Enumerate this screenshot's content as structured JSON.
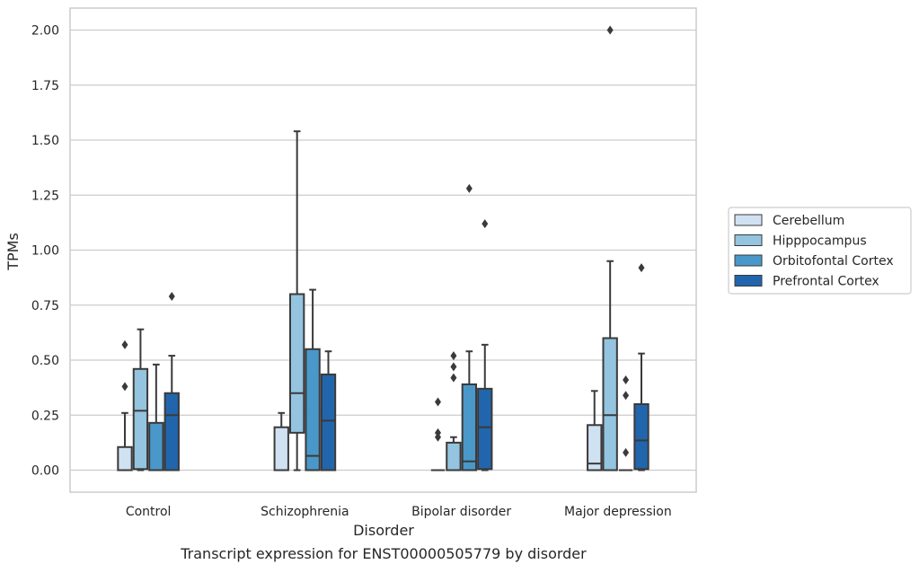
{
  "chart_data": {
    "type": "boxplot",
    "xlabel": "Disorder",
    "ylabel": "TPMs",
    "caption": "Transcript expression for ENST00000505779 by disorder",
    "ylim": [
      -0.1,
      2.1
    ],
    "yticks": [
      "0.00",
      "0.25",
      "0.50",
      "0.75",
      "1.00",
      "1.25",
      "1.50",
      "1.75",
      "2.00"
    ],
    "ytick_values": [
      0,
      0.25,
      0.5,
      0.75,
      1.0,
      1.25,
      1.5,
      1.75,
      2.0
    ],
    "grid": "horizontal",
    "legend_position": "right",
    "categories": [
      "Control",
      "Schizophrenia",
      "Bipolar disorder",
      "Major depression"
    ],
    "series": [
      {
        "name": "Cerebellum",
        "color": "#d0e1f2",
        "boxes": [
          {
            "q1": 0.0,
            "median": 0.0,
            "q3": 0.105,
            "whisker_low": 0.0,
            "whisker_high": 0.26,
            "outliers": [
              0.38,
              0.57
            ]
          },
          {
            "q1": 0.0,
            "median": 0.0,
            "q3": 0.195,
            "whisker_low": 0.0,
            "whisker_high": 0.26,
            "outliers": []
          },
          {
            "q1": 0.0,
            "median": 0.0,
            "q3": 0.0,
            "whisker_low": 0.0,
            "whisker_high": 0.0,
            "outliers": [
              0.15,
              0.17,
              0.31
            ]
          },
          {
            "q1": 0.0,
            "median": 0.03,
            "q3": 0.205,
            "whisker_low": 0.0,
            "whisker_high": 0.36,
            "outliers": []
          }
        ]
      },
      {
        "name": "Hipppocampus",
        "color": "#94c4df",
        "boxes": [
          {
            "q1": 0.005,
            "median": 0.27,
            "q3": 0.46,
            "whisker_low": 0.0,
            "whisker_high": 0.64,
            "outliers": []
          },
          {
            "q1": 0.17,
            "median": 0.35,
            "q3": 0.8,
            "whisker_low": 0.0,
            "whisker_high": 1.54,
            "outliers": []
          },
          {
            "q1": 0.0,
            "median": 0.0,
            "q3": 0.125,
            "whisker_low": 0.0,
            "whisker_high": 0.15,
            "outliers": [
              0.42,
              0.47,
              0.52
            ]
          },
          {
            "q1": 0.0,
            "median": 0.25,
            "q3": 0.6,
            "whisker_low": 0.0,
            "whisker_high": 0.95,
            "outliers": [
              2.0
            ]
          }
        ]
      },
      {
        "name": "Orbitofontal Cortex",
        "color": "#4a98c9",
        "boxes": [
          {
            "q1": 0.0,
            "median": 0.0,
            "q3": 0.215,
            "whisker_low": 0.0,
            "whisker_high": 0.48,
            "outliers": []
          },
          {
            "q1": 0.0,
            "median": 0.065,
            "q3": 0.55,
            "whisker_low": 0.0,
            "whisker_high": 0.82,
            "outliers": []
          },
          {
            "q1": 0.0,
            "median": 0.04,
            "q3": 0.39,
            "whisker_low": 0.0,
            "whisker_high": 0.54,
            "outliers": [
              1.28
            ]
          },
          {
            "q1": 0.0,
            "median": 0.0,
            "q3": 0.0,
            "whisker_low": 0.0,
            "whisker_high": 0.0,
            "outliers": [
              0.08,
              0.34,
              0.41
            ]
          }
        ]
      },
      {
        "name": "Prefrontal Cortex",
        "color": "#2166ac",
        "boxes": [
          {
            "q1": 0.0,
            "median": 0.25,
            "q3": 0.35,
            "whisker_low": 0.0,
            "whisker_high": 0.52,
            "outliers": [
              0.79
            ]
          },
          {
            "q1": 0.0,
            "median": 0.225,
            "q3": 0.435,
            "whisker_low": 0.0,
            "whisker_high": 0.54,
            "outliers": []
          },
          {
            "q1": 0.005,
            "median": 0.195,
            "q3": 0.37,
            "whisker_low": 0.0,
            "whisker_high": 0.57,
            "outliers": [
              1.12
            ]
          },
          {
            "q1": 0.005,
            "median": 0.135,
            "q3": 0.3,
            "whisker_low": 0.0,
            "whisker_high": 0.53,
            "outliers": [
              0.92
            ]
          }
        ]
      }
    ]
  }
}
